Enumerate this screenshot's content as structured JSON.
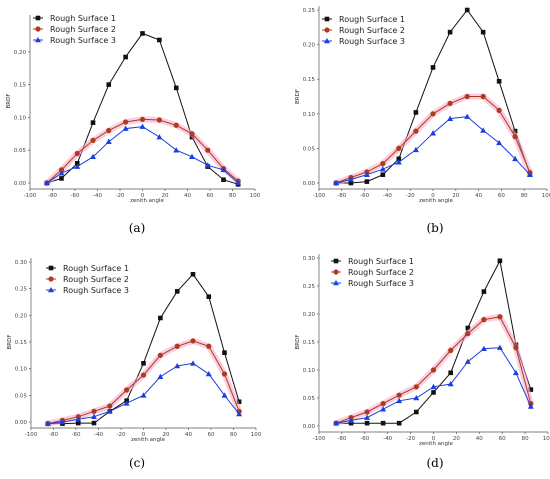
{
  "colors": {
    "series": [
      "#111111",
      "#b03a1e",
      "#1a3fe0"
    ],
    "glow": "#f4a6c8"
  },
  "chart_data": [
    {
      "panel_label": "(a)",
      "type": "line",
      "xlabel": "zenith angle",
      "ylabel": "BRDF",
      "xlim": [
        -100,
        100
      ],
      "ylim": [
        0,
        0.25
      ],
      "xticks": [
        -100,
        -80,
        -60,
        -40,
        -20,
        0,
        20,
        40,
        60,
        80,
        100
      ],
      "yticks": [
        0,
        0.05,
        0.1,
        0.15,
        0.2
      ],
      "ytick_labels": [
        "0.00",
        "0.05",
        "0.10",
        "0.15",
        "0.20"
      ],
      "legend_position": "top-left",
      "series": [
        {
          "name": "Rough Surface 1",
          "marker": "square",
          "x": [
            -85,
            -72,
            -58,
            -44,
            -30,
            -15,
            0,
            15,
            30,
            44,
            58,
            72,
            85
          ],
          "y": [
            0.0,
            0.007,
            0.03,
            0.092,
            0.15,
            0.192,
            0.228,
            0.218,
            0.145,
            0.07,
            0.025,
            0.005,
            -0.002
          ]
        },
        {
          "name": "Rough Surface 2",
          "marker": "circle",
          "x": [
            -85,
            -72,
            -58,
            -44,
            -30,
            -15,
            0,
            15,
            30,
            44,
            58,
            72,
            85
          ],
          "y": [
            0.0,
            0.02,
            0.045,
            0.065,
            0.08,
            0.093,
            0.097,
            0.096,
            0.088,
            0.075,
            0.05,
            0.022,
            0.003
          ]
        },
        {
          "name": "Rough Surface 3",
          "marker": "triangle",
          "x": [
            -85,
            -72,
            -58,
            -44,
            -30,
            -15,
            0,
            15,
            30,
            44,
            58,
            72,
            85
          ],
          "y": [
            0.0,
            0.015,
            0.025,
            0.04,
            0.063,
            0.083,
            0.086,
            0.07,
            0.05,
            0.04,
            0.027,
            0.02,
            0.0
          ]
        }
      ]
    },
    {
      "panel_label": "(b)",
      "type": "line",
      "xlabel": "zenith angle",
      "ylabel": "BRDF",
      "xlim": [
        -100,
        100
      ],
      "ylim": [
        0,
        0.25
      ],
      "xticks": [
        -100,
        -80,
        -60,
        -40,
        -20,
        0,
        20,
        40,
        60,
        80,
        100
      ],
      "yticks": [
        0,
        0.05,
        0.1,
        0.15,
        0.2,
        0.25
      ],
      "ytick_labels": [
        "0.00",
        "0.05",
        "0.10",
        "0.15",
        "0.20",
        "0.25"
      ],
      "legend_position": "top-left",
      "series": [
        {
          "name": "Rough Surface 1",
          "marker": "square",
          "x": [
            -85,
            -72,
            -58,
            -44,
            -30,
            -15,
            0,
            15,
            30,
            44,
            58,
            72,
            85
          ],
          "y": [
            0.0,
            0.0,
            0.002,
            0.012,
            0.035,
            0.102,
            0.167,
            0.218,
            0.25,
            0.218,
            0.147,
            0.075,
            0.013
          ]
        },
        {
          "name": "Rough Surface 2",
          "marker": "circle",
          "x": [
            -85,
            -72,
            -58,
            -44,
            -30,
            -15,
            0,
            15,
            30,
            44,
            58,
            72,
            85
          ],
          "y": [
            0.0,
            0.008,
            0.016,
            0.028,
            0.05,
            0.075,
            0.1,
            0.115,
            0.125,
            0.125,
            0.105,
            0.067,
            0.015
          ]
        },
        {
          "name": "Rough Surface 3",
          "marker": "triangle",
          "x": [
            -85,
            -72,
            -58,
            -44,
            -30,
            -15,
            0,
            15,
            30,
            44,
            58,
            72,
            85
          ],
          "y": [
            0.0,
            0.005,
            0.012,
            0.02,
            0.03,
            0.048,
            0.072,
            0.093,
            0.096,
            0.076,
            0.058,
            0.035,
            0.012
          ]
        }
      ]
    },
    {
      "panel_label": "(c)",
      "type": "line",
      "xlabel": "zenith angle",
      "ylabel": "BRDF",
      "xlim": [
        -100,
        100
      ],
      "ylim": [
        0,
        0.3
      ],
      "xticks": [
        -100,
        -80,
        -60,
        -40,
        -20,
        0,
        20,
        40,
        60,
        80,
        100
      ],
      "yticks": [
        0,
        0.05,
        0.1,
        0.15,
        0.2,
        0.25,
        0.3
      ],
      "ytick_labels": [
        "0.00",
        "0.05",
        "0.10",
        "0.15",
        "0.20",
        "0.25",
        "0.30"
      ],
      "legend_position": "top-left",
      "series": [
        {
          "name": "Rough Surface 1",
          "marker": "square",
          "x": [
            -85,
            -72,
            -58,
            -44,
            -30,
            -15,
            0,
            15,
            30,
            44,
            58,
            72,
            85
          ],
          "y": [
            -0.003,
            -0.003,
            -0.002,
            -0.002,
            0.02,
            0.04,
            0.11,
            0.195,
            0.245,
            0.277,
            0.235,
            0.13,
            0.038
          ]
        },
        {
          "name": "Rough Surface 2",
          "marker": "circle",
          "x": [
            -85,
            -72,
            -58,
            -44,
            -30,
            -15,
            0,
            15,
            30,
            44,
            58,
            72,
            85
          ],
          "y": [
            -0.003,
            0.003,
            0.01,
            0.02,
            0.03,
            0.06,
            0.088,
            0.125,
            0.142,
            0.152,
            0.142,
            0.09,
            0.02
          ]
        },
        {
          "name": "Rough Surface 3",
          "marker": "triangle",
          "x": [
            -85,
            -72,
            -58,
            -44,
            -30,
            -15,
            0,
            15,
            30,
            44,
            58,
            72,
            85
          ],
          "y": [
            -0.003,
            0.0,
            0.005,
            0.01,
            0.02,
            0.035,
            0.05,
            0.085,
            0.105,
            0.11,
            0.09,
            0.05,
            0.015
          ]
        }
      ]
    },
    {
      "panel_label": "(d)",
      "type": "line",
      "xlabel": "zenith angle",
      "ylabel": "BRDF",
      "xlim": [
        -100,
        100
      ],
      "ylim": [
        0,
        0.3
      ],
      "xticks": [
        -100,
        -80,
        -60,
        -40,
        -20,
        0,
        20,
        40,
        60,
        80,
        100
      ],
      "yticks": [
        0,
        0.05,
        0.1,
        0.15,
        0.2,
        0.25,
        0.3
      ],
      "ytick_labels": [
        "0.00",
        "0.05",
        "0.10",
        "0.15",
        "0.20",
        "0.25",
        "0.30"
      ],
      "legend_position": "top-left",
      "series": [
        {
          "name": "Rough Surface 1",
          "marker": "square",
          "x": [
            -85,
            -72,
            -58,
            -44,
            -30,
            -15,
            0,
            15,
            30,
            44,
            58,
            72,
            85
          ],
          "y": [
            0.005,
            0.005,
            0.005,
            0.005,
            0.005,
            0.025,
            0.06,
            0.095,
            0.175,
            0.24,
            0.295,
            0.145,
            0.065
          ]
        },
        {
          "name": "Rough Surface 2",
          "marker": "circle",
          "x": [
            -85,
            -72,
            -58,
            -44,
            -30,
            -15,
            0,
            15,
            30,
            44,
            58,
            72,
            85
          ],
          "y": [
            0.005,
            0.015,
            0.025,
            0.04,
            0.055,
            0.07,
            0.1,
            0.135,
            0.165,
            0.19,
            0.195,
            0.14,
            0.04
          ]
        },
        {
          "name": "Rough Surface 3",
          "marker": "triangle",
          "x": [
            -85,
            -72,
            -58,
            -44,
            -30,
            -15,
            0,
            15,
            30,
            44,
            58,
            72,
            85
          ],
          "y": [
            0.005,
            0.01,
            0.015,
            0.03,
            0.045,
            0.05,
            0.07,
            0.075,
            0.115,
            0.138,
            0.14,
            0.095,
            0.035
          ]
        }
      ]
    }
  ]
}
